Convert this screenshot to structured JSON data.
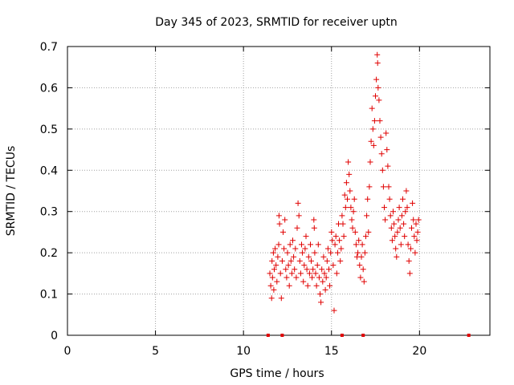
{
  "colors": {
    "marker": "#e00000",
    "grid": "#a0a0a0",
    "axis": "#000000"
  },
  "chart_data": {
    "type": "scatter",
    "title": "Day 345 of 2023, SRMTID for receiver uptn",
    "xlabel": "GPS time / hours",
    "ylabel": "SRMTID / TECUs",
    "xlim": [
      0,
      24
    ],
    "ylim": [
      0,
      0.7
    ],
    "grid": true,
    "marker": "+",
    "xticks": [
      0,
      5,
      10,
      15,
      20
    ],
    "xtick_labels": [
      "0",
      "5",
      "10",
      "15",
      "20"
    ],
    "yticks": [
      0,
      0.1,
      0.2,
      0.3,
      0.4,
      0.5,
      0.6,
      0.7
    ],
    "ytick_labels": [
      "0",
      "0.1",
      "0.2",
      "0.3",
      "0.4",
      "0.5",
      "0.6",
      "0.7"
    ],
    "zero_points_x": [
      11.4,
      12.2,
      15.6,
      16.8,
      22.8
    ],
    "series": [
      {
        "name": "SRMTID",
        "points": [
          [
            11.5,
            0.15
          ],
          [
            11.55,
            0.12
          ],
          [
            11.6,
            0.09
          ],
          [
            11.62,
            0.18
          ],
          [
            11.65,
            0.14
          ],
          [
            11.7,
            0.2
          ],
          [
            11.72,
            0.11
          ],
          [
            11.75,
            0.16
          ],
          [
            11.8,
            0.21
          ],
          [
            11.85,
            0.17
          ],
          [
            11.9,
            0.13
          ],
          [
            11.95,
            0.19
          ],
          [
            12.0,
            0.22
          ],
          [
            12.02,
            0.29
          ],
          [
            12.05,
            0.27
          ],
          [
            12.1,
            0.15
          ],
          [
            12.15,
            0.09
          ],
          [
            12.2,
            0.18
          ],
          [
            12.25,
            0.25
          ],
          [
            12.3,
            0.21
          ],
          [
            12.35,
            0.28
          ],
          [
            12.4,
            0.16
          ],
          [
            12.45,
            0.14
          ],
          [
            12.5,
            0.2
          ],
          [
            12.55,
            0.17
          ],
          [
            12.6,
            0.12
          ],
          [
            12.65,
            0.22
          ],
          [
            12.7,
            0.18
          ],
          [
            12.75,
            0.15
          ],
          [
            12.8,
            0.23
          ],
          [
            12.85,
            0.19
          ],
          [
            12.9,
            0.16
          ],
          [
            12.95,
            0.21
          ],
          [
            13.0,
            0.14
          ],
          [
            13.05,
            0.26
          ],
          [
            13.1,
            0.32
          ],
          [
            13.15,
            0.29
          ],
          [
            13.2,
            0.18
          ],
          [
            13.25,
            0.15
          ],
          [
            13.3,
            0.22
          ],
          [
            13.35,
            0.2
          ],
          [
            13.4,
            0.13
          ],
          [
            13.45,
            0.17
          ],
          [
            13.5,
            0.21
          ],
          [
            13.55,
            0.24
          ],
          [
            13.6,
            0.16
          ],
          [
            13.65,
            0.12
          ],
          [
            13.7,
            0.19
          ],
          [
            13.75,
            0.15
          ],
          [
            13.8,
            0.22
          ],
          [
            13.85,
            0.18
          ],
          [
            13.9,
            0.14
          ],
          [
            13.95,
            0.16
          ],
          [
            14.0,
            0.28
          ],
          [
            14.02,
            0.26
          ],
          [
            14.05,
            0.2
          ],
          [
            14.1,
            0.15
          ],
          [
            14.15,
            0.12
          ],
          [
            14.2,
            0.17
          ],
          [
            14.25,
            0.22
          ],
          [
            14.3,
            0.14
          ],
          [
            14.35,
            0.1
          ],
          [
            14.4,
            0.08
          ],
          [
            14.45,
            0.16
          ],
          [
            14.5,
            0.13
          ],
          [
            14.55,
            0.19
          ],
          [
            14.6,
            0.15
          ],
          [
            14.65,
            0.11
          ],
          [
            14.7,
            0.14
          ],
          [
            14.75,
            0.18
          ],
          [
            14.8,
            0.21
          ],
          [
            14.85,
            0.16
          ],
          [
            14.9,
            0.12
          ],
          [
            14.95,
            0.2
          ],
          [
            15.0,
            0.25
          ],
          [
            15.05,
            0.23
          ],
          [
            15.1,
            0.17
          ],
          [
            15.15,
            0.06
          ],
          [
            15.2,
            0.22
          ],
          [
            15.25,
            0.24
          ],
          [
            15.3,
            0.15
          ],
          [
            15.35,
            0.2
          ],
          [
            15.4,
            0.27
          ],
          [
            15.45,
            0.23
          ],
          [
            15.5,
            0.18
          ],
          [
            15.55,
            0.21
          ],
          [
            15.6,
            0.29
          ],
          [
            15.65,
            0.27
          ],
          [
            15.7,
            0.24
          ],
          [
            15.75,
            0.34
          ],
          [
            15.8,
            0.31
          ],
          [
            15.85,
            0.37
          ],
          [
            15.9,
            0.33
          ],
          [
            15.95,
            0.42
          ],
          [
            16.0,
            0.39
          ],
          [
            16.05,
            0.35
          ],
          [
            16.1,
            0.31
          ],
          [
            16.15,
            0.28
          ],
          [
            16.2,
            0.26
          ],
          [
            16.25,
            0.3
          ],
          [
            16.3,
            0.33
          ],
          [
            16.35,
            0.25
          ],
          [
            16.4,
            0.22
          ],
          [
            16.45,
            0.19
          ],
          [
            16.5,
            0.2
          ],
          [
            16.55,
            0.23
          ],
          [
            16.6,
            0.17
          ],
          [
            16.65,
            0.14
          ],
          [
            16.7,
            0.19
          ],
          [
            16.75,
            0.22
          ],
          [
            16.8,
            0.16
          ],
          [
            16.85,
            0.13
          ],
          [
            16.9,
            0.2
          ],
          [
            16.95,
            0.24
          ],
          [
            17.0,
            0.29
          ],
          [
            17.05,
            0.33
          ],
          [
            17.1,
            0.25
          ],
          [
            17.15,
            0.36
          ],
          [
            17.2,
            0.42
          ],
          [
            17.25,
            0.47
          ],
          [
            17.3,
            0.55
          ],
          [
            17.35,
            0.5
          ],
          [
            17.4,
            0.46
          ],
          [
            17.45,
            0.52
          ],
          [
            17.5,
            0.58
          ],
          [
            17.55,
            0.62
          ],
          [
            17.6,
            0.68
          ],
          [
            17.62,
            0.66
          ],
          [
            17.65,
            0.6
          ],
          [
            17.7,
            0.57
          ],
          [
            17.75,
            0.52
          ],
          [
            17.8,
            0.48
          ],
          [
            17.85,
            0.44
          ],
          [
            17.9,
            0.4
          ],
          [
            17.95,
            0.36
          ],
          [
            18.0,
            0.31
          ],
          [
            18.05,
            0.28
          ],
          [
            18.1,
            0.49
          ],
          [
            18.15,
            0.45
          ],
          [
            18.2,
            0.41
          ],
          [
            18.25,
            0.36
          ],
          [
            18.3,
            0.33
          ],
          [
            18.35,
            0.29
          ],
          [
            18.4,
            0.26
          ],
          [
            18.45,
            0.23
          ],
          [
            18.5,
            0.3
          ],
          [
            18.55,
            0.27
          ],
          [
            18.6,
            0.24
          ],
          [
            18.65,
            0.21
          ],
          [
            18.7,
            0.19
          ],
          [
            18.75,
            0.25
          ],
          [
            18.8,
            0.28
          ],
          [
            18.85,
            0.31
          ],
          [
            18.9,
            0.26
          ],
          [
            18.95,
            0.22
          ],
          [
            19.0,
            0.29
          ],
          [
            19.05,
            0.33
          ],
          [
            19.1,
            0.27
          ],
          [
            19.15,
            0.24
          ],
          [
            19.2,
            0.3
          ],
          [
            19.25,
            0.35
          ],
          [
            19.3,
            0.31
          ],
          [
            19.35,
            0.22
          ],
          [
            19.4,
            0.18
          ],
          [
            19.45,
            0.15
          ],
          [
            19.5,
            0.21
          ],
          [
            19.55,
            0.26
          ],
          [
            19.6,
            0.32
          ],
          [
            19.65,
            0.28
          ],
          [
            19.7,
            0.24
          ],
          [
            19.75,
            0.2
          ],
          [
            19.8,
            0.27
          ],
          [
            19.85,
            0.23
          ],
          [
            19.9,
            0.25
          ],
          [
            19.95,
            0.28
          ]
        ]
      }
    ]
  }
}
